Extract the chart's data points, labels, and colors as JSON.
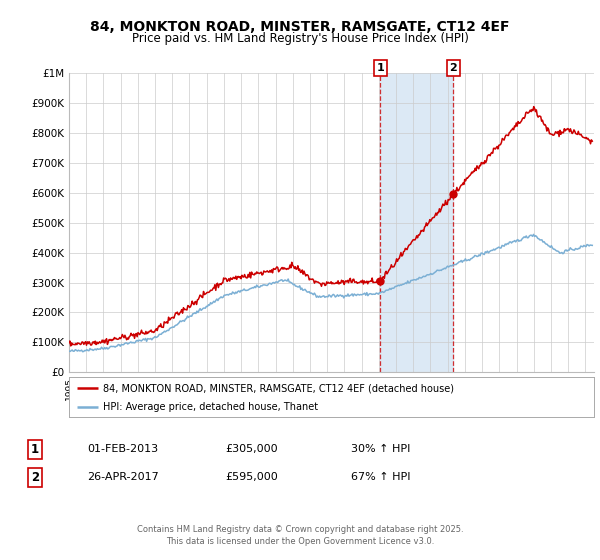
{
  "title": "84, MONKTON ROAD, MINSTER, RAMSGATE, CT12 4EF",
  "subtitle": "Price paid vs. HM Land Registry's House Price Index (HPI)",
  "ylim": [
    0,
    1000000
  ],
  "yticks": [
    0,
    100000,
    200000,
    300000,
    400000,
    500000,
    600000,
    700000,
    800000,
    900000,
    1000000
  ],
  "ytick_labels": [
    "£0",
    "£100K",
    "£200K",
    "£300K",
    "£400K",
    "£500K",
    "£600K",
    "£700K",
    "£800K",
    "£900K",
    "£1M"
  ],
  "xlim_start": 1995.0,
  "xlim_end": 2025.5,
  "transaction1_date": 2013.08,
  "transaction1_price": 305000,
  "transaction1_label": "1",
  "transaction2_date": 2017.32,
  "transaction2_price": 595000,
  "transaction2_label": "2",
  "legend_line1": "84, MONKTON ROAD, MINSTER, RAMSGATE, CT12 4EF (detached house)",
  "legend_line2": "HPI: Average price, detached house, Thanet",
  "annotation1_date": "01-FEB-2013",
  "annotation1_price": "£305,000",
  "annotation1_pct": "30% ↑ HPI",
  "annotation2_date": "26-APR-2017",
  "annotation2_price": "£595,000",
  "annotation2_pct": "67% ↑ HPI",
  "footer": "Contains HM Land Registry data © Crown copyright and database right 2025.\nThis data is licensed under the Open Government Licence v3.0.",
  "line_color_red": "#cc0000",
  "line_color_blue": "#7bafd4",
  "highlight_color": "#dce9f5",
  "vline_color": "#cc0000",
  "background_color": "#ffffff",
  "grid_color": "#cccccc"
}
